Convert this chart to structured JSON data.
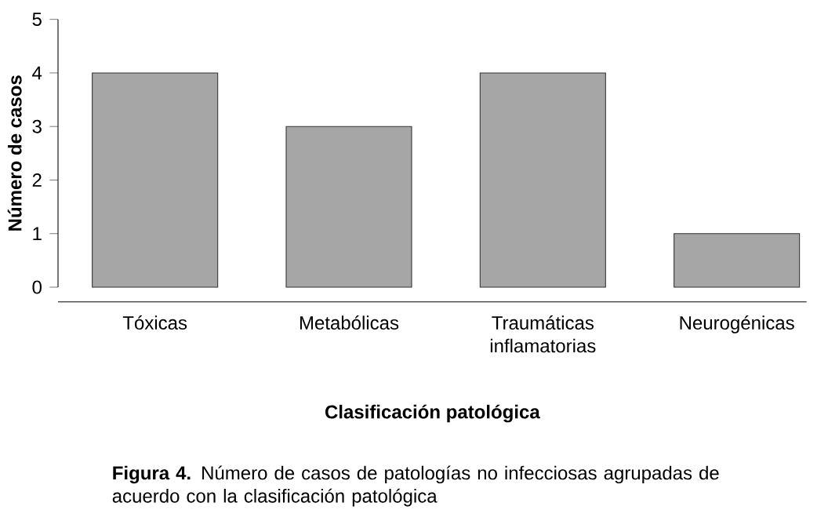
{
  "chart_data": {
    "type": "bar",
    "xlabel": "Clasificación patológica",
    "ylabel": "Número de casos",
    "categories": [
      "Tóxicas",
      "Metabólicas",
      "Traumáticas inflamatorias",
      "Neurogénicas"
    ],
    "values": [
      4,
      3,
      4,
      1
    ],
    "color": "#a6a6a6",
    "ylim": [
      0,
      5
    ],
    "yticks": [
      0,
      1,
      2,
      3,
      4,
      5
    ],
    "annotations": [
      "**Figura 4.** Número de casos de patologías no infecciosas agrupadas de acuerdo con la clasificación patológica"
    ]
  }
}
